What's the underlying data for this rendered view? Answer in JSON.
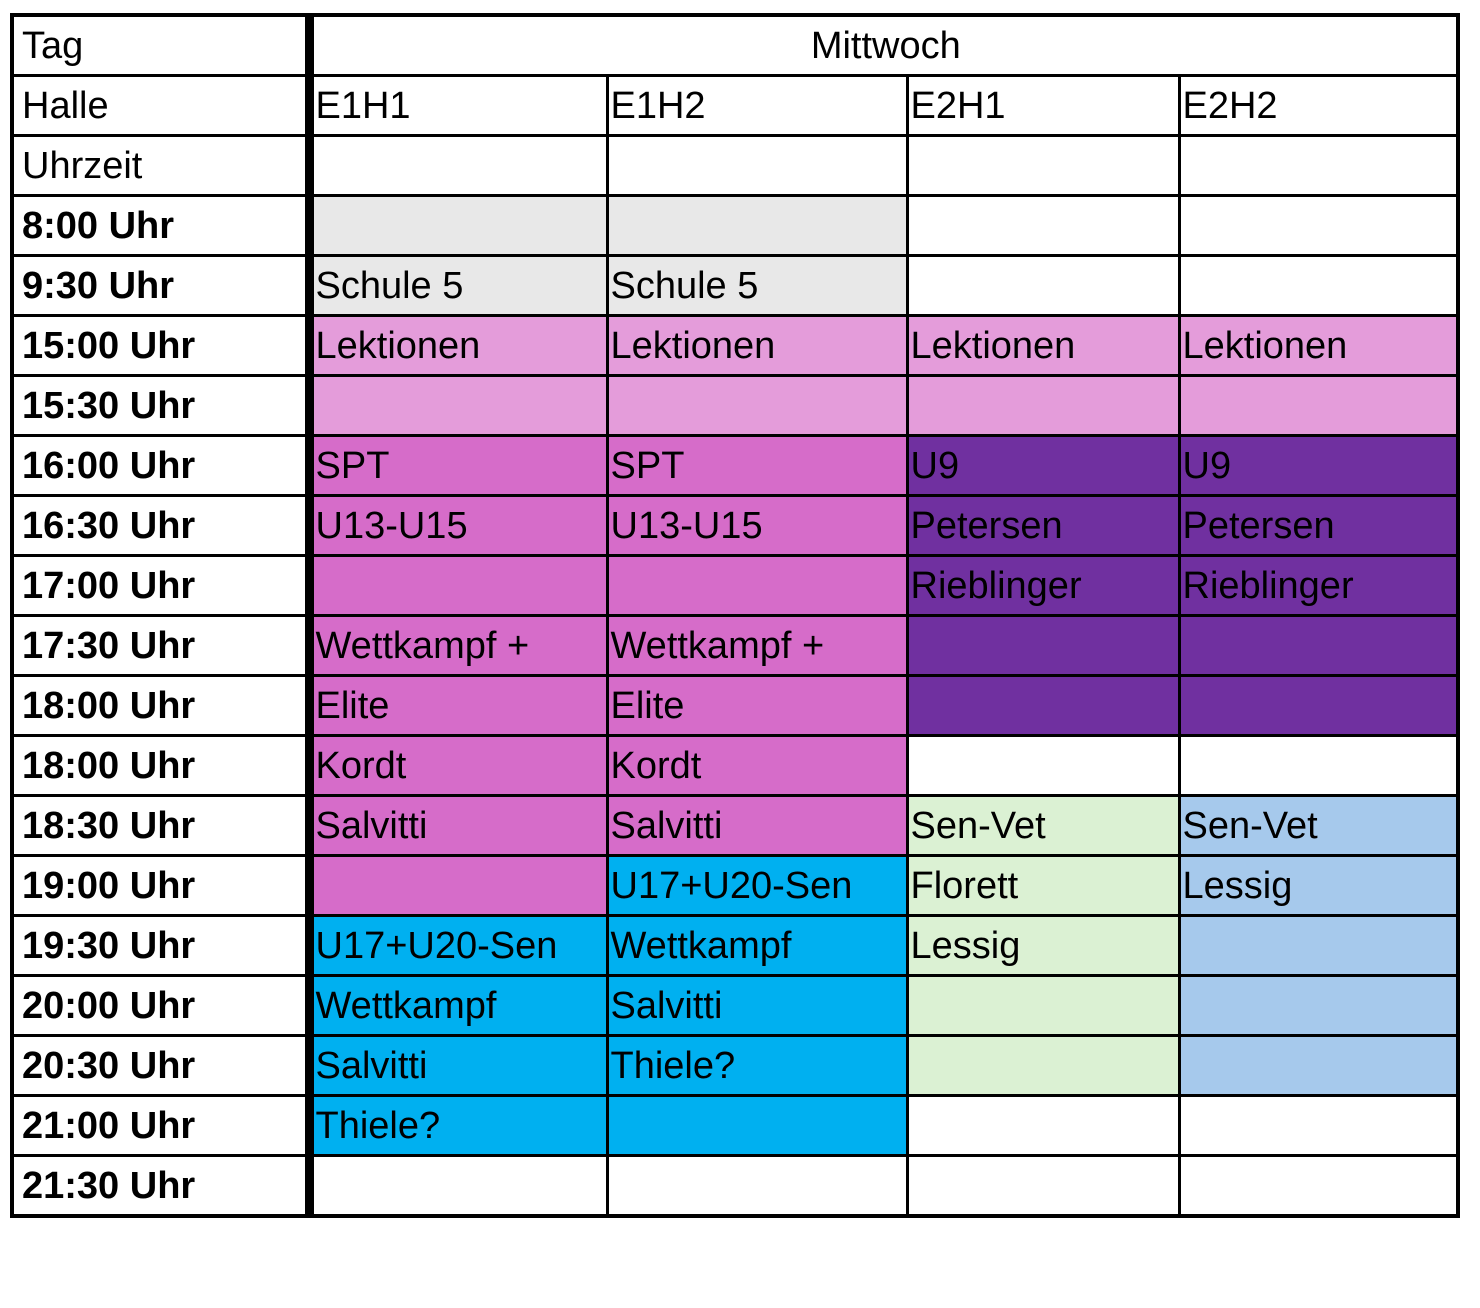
{
  "labels": {
    "day": "Tag",
    "hall": "Halle",
    "time": "Uhrzeit"
  },
  "day": "Mittwoch",
  "halls": [
    "E1H1",
    "E1H2",
    "E2H1",
    "E2H2"
  ],
  "colors": {
    "white": "#ffffff",
    "gray": "#e8e8e8",
    "light-pink": "#e49cda",
    "pink": "#d66cc9",
    "purple": "#7030a0",
    "cyan": "#00b0f0",
    "green": "#dbf1d3",
    "blue": "#a6c9ec"
  },
  "rows": [
    {
      "time": "8:00 Uhr",
      "cells": [
        {
          "text": "",
          "color": "gray"
        },
        {
          "text": "",
          "color": "gray"
        },
        {
          "text": "",
          "color": "white"
        },
        {
          "text": "",
          "color": "white"
        }
      ]
    },
    {
      "time": "9:30  Uhr",
      "cells": [
        {
          "text": "Schule 5",
          "color": "gray"
        },
        {
          "text": "Schule 5",
          "color": "gray"
        },
        {
          "text": "",
          "color": "white"
        },
        {
          "text": "",
          "color": "white"
        }
      ]
    },
    {
      "time": "15:00 Uhr",
      "cells": [
        {
          "text": "Lektionen",
          "color": "light-pink"
        },
        {
          "text": "Lektionen",
          "color": "light-pink"
        },
        {
          "text": "Lektionen",
          "color": "light-pink"
        },
        {
          "text": "Lektionen",
          "color": "light-pink"
        }
      ]
    },
    {
      "time": "15:30 Uhr",
      "cells": [
        {
          "text": "",
          "color": "light-pink"
        },
        {
          "text": "",
          "color": "light-pink"
        },
        {
          "text": "",
          "color": "light-pink"
        },
        {
          "text": "",
          "color": "light-pink"
        }
      ]
    },
    {
      "time": "16:00 Uhr",
      "cells": [
        {
          "text": "SPT",
          "color": "pink"
        },
        {
          "text": "SPT",
          "color": "pink"
        },
        {
          "text": "U9",
          "color": "purple"
        },
        {
          "text": "U9",
          "color": "purple"
        }
      ]
    },
    {
      "time": "16:30 Uhr",
      "cells": [
        {
          "text": "U13-U15",
          "color": "pink"
        },
        {
          "text": "U13-U15",
          "color": "pink"
        },
        {
          "text": "Petersen",
          "color": "purple"
        },
        {
          "text": "Petersen",
          "color": "purple"
        }
      ]
    },
    {
      "time": "17:00 Uhr",
      "cells": [
        {
          "text": "",
          "color": "pink"
        },
        {
          "text": "",
          "color": "pink"
        },
        {
          "text": "Rieblinger",
          "color": "purple"
        },
        {
          "text": "Rieblinger",
          "color": "purple"
        }
      ]
    },
    {
      "time": "17:30 Uhr",
      "cells": [
        {
          "text": "Wettkampf +",
          "color": "pink"
        },
        {
          "text": "Wettkampf +",
          "color": "pink"
        },
        {
          "text": "",
          "color": "purple"
        },
        {
          "text": "",
          "color": "purple"
        }
      ]
    },
    {
      "time": "18:00 Uhr",
      "cells": [
        {
          "text": "Elite",
          "color": "pink"
        },
        {
          "text": "Elite",
          "color": "pink"
        },
        {
          "text": "",
          "color": "purple"
        },
        {
          "text": "",
          "color": "purple"
        }
      ]
    },
    {
      "time": "18:00 Uhr",
      "cells": [
        {
          "text": "Kordt",
          "color": "pink"
        },
        {
          "text": "Kordt",
          "color": "pink"
        },
        {
          "text": "",
          "color": "white"
        },
        {
          "text": "",
          "color": "white"
        }
      ]
    },
    {
      "time": "18:30 Uhr",
      "cells": [
        {
          "text": "Salvitti",
          "color": "pink"
        },
        {
          "text": "Salvitti",
          "color": "pink"
        },
        {
          "text": "Sen-Vet",
          "color": "green"
        },
        {
          "text": "Sen-Vet",
          "color": "blue"
        }
      ]
    },
    {
      "time": "19:00 Uhr",
      "cells": [
        {
          "text": "",
          "color": "pink"
        },
        {
          "text": "U17+U20-Sen",
          "color": "cyan"
        },
        {
          "text": "Florett",
          "color": "green"
        },
        {
          "text": "Lessig",
          "color": "blue"
        }
      ]
    },
    {
      "time": "19:30 Uhr",
      "cells": [
        {
          "text": "U17+U20-Sen",
          "color": "cyan"
        },
        {
          "text": "Wettkampf",
          "color": "cyan"
        },
        {
          "text": "Lessig",
          "color": "green"
        },
        {
          "text": "",
          "color": "blue"
        }
      ]
    },
    {
      "time": "20:00 Uhr",
      "cells": [
        {
          "text": "Wettkampf",
          "color": "cyan"
        },
        {
          "text": "Salvitti",
          "color": "cyan"
        },
        {
          "text": "",
          "color": "green"
        },
        {
          "text": "",
          "color": "blue"
        }
      ]
    },
    {
      "time": "20:30 Uhr",
      "cells": [
        {
          "text": "Salvitti",
          "color": "cyan"
        },
        {
          "text": "Thiele?",
          "color": "cyan"
        },
        {
          "text": "",
          "color": "green"
        },
        {
          "text": "",
          "color": "blue"
        }
      ]
    },
    {
      "time": "21:00 Uhr",
      "cells": [
        {
          "text": "Thiele?",
          "color": "cyan"
        },
        {
          "text": "",
          "color": "cyan"
        },
        {
          "text": "",
          "color": "white"
        },
        {
          "text": "",
          "color": "white"
        }
      ]
    },
    {
      "time": "21:30 Uhr",
      "cells": [
        {
          "text": "",
          "color": "white"
        },
        {
          "text": "",
          "color": "white"
        },
        {
          "text": "",
          "color": "white"
        },
        {
          "text": "",
          "color": "white"
        }
      ]
    }
  ]
}
